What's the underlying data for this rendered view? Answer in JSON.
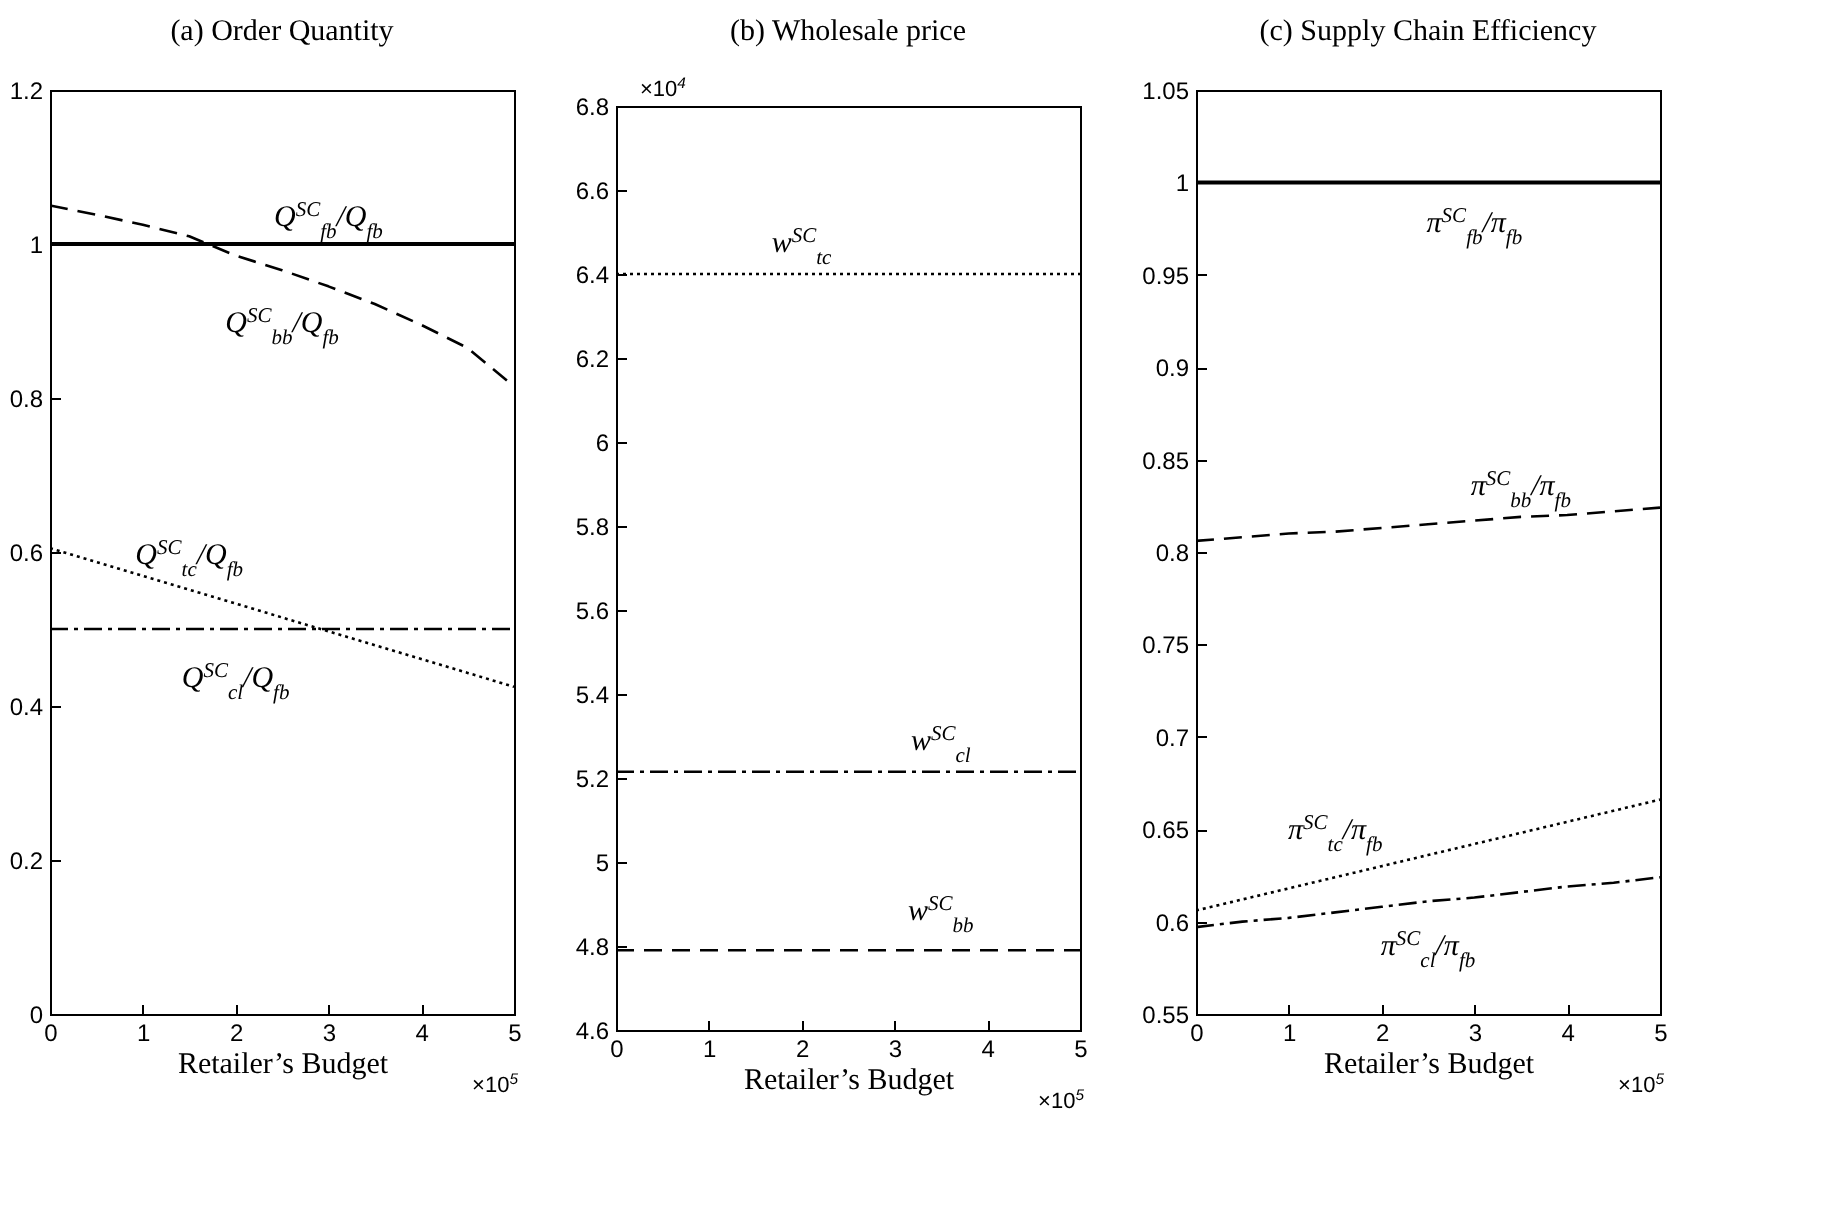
{
  "chart_data": [
    {
      "type": "line",
      "title": "(a) Order Quantity",
      "xlabel": "Retailer’s Budget",
      "x": [
        0,
        0.5,
        1,
        1.5,
        2,
        2.5,
        3,
        3.5,
        4,
        4.5,
        5
      ],
      "xlim": [
        0,
        5
      ],
      "xticks": [
        0,
        1,
        2,
        3,
        4,
        5
      ],
      "ylim": [
        0,
        1.2
      ],
      "yticks": [
        0,
        0.2,
        0.4,
        0.6,
        0.8,
        1,
        1.2
      ],
      "grid": false,
      "marker": "none",
      "annotations": [
        "×10$^{5}$"
      ],
      "series": [
        {
          "name": "Q$^{SC}$$_{fb}$/Q$_{fb}$",
          "color": "#000000",
          "line_style": "solid",
          "values": [
            1,
            1,
            1,
            1,
            1,
            1,
            1,
            1,
            1,
            1,
            1
          ]
        },
        {
          "name": "Q$^{SC}$$_{bb}$/Q$_{fb}$",
          "color": "#000000",
          "line_style": "dashed",
          "values": [
            1.05,
            1.038,
            1.025,
            1.01,
            0.985,
            0.966,
            0.945,
            0.922,
            0.895,
            0.865,
            0.815
          ]
        },
        {
          "name": "Q$^{SC}$$_{tc}$/Q$_{fb}$",
          "color": "#000000",
          "line_style": "dotted",
          "values": [
            0.605,
            0.587,
            0.569,
            0.551,
            0.533,
            0.515,
            0.497,
            0.479,
            0.461,
            0.443,
            0.425
          ]
        },
        {
          "name": "Q$^{SC}$$_{cl}$/Q$_{fb}$",
          "color": "#000000",
          "line_style": "dashdot",
          "values": [
            0.5,
            0.5,
            0.5,
            0.5,
            0.5,
            0.5,
            0.5,
            0.5,
            0.5,
            0.5,
            0.5
          ]
        }
      ]
    },
    {
      "type": "line",
      "title": "(b) Wholesale price",
      "xlabel": "Retailer’s Budget",
      "x": [
        0,
        0.5,
        1,
        1.5,
        2,
        2.5,
        3,
        3.5,
        4,
        4.5,
        5
      ],
      "xlim": [
        0,
        5
      ],
      "xticks": [
        0,
        1,
        2,
        3,
        4,
        5
      ],
      "ylim": [
        4.6,
        6.8
      ],
      "yticks": [
        4.6,
        4.8,
        5,
        5.2,
        5.4,
        5.6,
        5.8,
        6,
        6.2,
        6.4,
        6.6,
        6.8
      ],
      "grid": false,
      "marker": "none",
      "annotations": [
        "×10$^{4}$",
        "×10$^{5}$"
      ],
      "series": [
        {
          "name": "w$^{SC}$$_{tc}$",
          "color": "#000000",
          "line_style": "dotted",
          "values": [
            6.4,
            6.4,
            6.4,
            6.4,
            6.4,
            6.4,
            6.4,
            6.4,
            6.4,
            6.4,
            6.4
          ]
        },
        {
          "name": "w$^{SC}$$_{cl}$",
          "color": "#000000",
          "line_style": "dashdot",
          "values": [
            5.215,
            5.215,
            5.215,
            5.215,
            5.215,
            5.215,
            5.215,
            5.215,
            5.215,
            5.215,
            5.215
          ]
        },
        {
          "name": "w$^{SC}$$_{bb}$",
          "color": "#000000",
          "line_style": "dashed",
          "values": [
            4.79,
            4.79,
            4.79,
            4.79,
            4.79,
            4.79,
            4.79,
            4.79,
            4.79,
            4.79,
            4.79
          ]
        }
      ]
    },
    {
      "type": "line",
      "title": "(c) Supply Chain Efficiency",
      "xlabel": "Retailer’s Budget",
      "x": [
        0,
        0.5,
        1,
        1.5,
        2,
        2.5,
        3,
        3.5,
        4,
        4.5,
        5
      ],
      "xlim": [
        0,
        5
      ],
      "xticks": [
        0,
        1,
        2,
        3,
        4,
        5
      ],
      "ylim": [
        0.55,
        1.05
      ],
      "yticks": [
        0.55,
        0.6,
        0.65,
        0.7,
        0.75,
        0.8,
        0.85,
        0.9,
        0.95,
        1,
        1.05
      ],
      "grid": false,
      "marker": "none",
      "annotations": [
        "×10$^{5}$"
      ],
      "series": [
        {
          "name": "π$^{SC}$$_{fb}$/π$_{fb}$",
          "color": "#000000",
          "line_style": "solid",
          "values": [
            1,
            1,
            1,
            1,
            1,
            1,
            1,
            1,
            1,
            1,
            1
          ]
        },
        {
          "name": "π$^{SC}$$_{bb}$/π$_{fb}$",
          "color": "#000000",
          "line_style": "dashed",
          "values": [
            0.806,
            0.808,
            0.81,
            0.811,
            0.813,
            0.815,
            0.817,
            0.819,
            0.82,
            0.822,
            0.824
          ]
        },
        {
          "name": "π$^{SC}$$_{tc}$/π$_{fb}$",
          "color": "#000000",
          "line_style": "dotted",
          "values": [
            0.606,
            0.612,
            0.618,
            0.624,
            0.63,
            0.636,
            0.642,
            0.648,
            0.654,
            0.66,
            0.666
          ]
        },
        {
          "name": "π$^{SC}$$_{cl}$/π$_{fb}$",
          "color": "#000000",
          "line_style": "dashdot",
          "values": [
            0.597,
            0.6,
            0.602,
            0.605,
            0.608,
            0.611,
            0.613,
            0.616,
            0.619,
            0.621,
            0.624
          ]
        }
      ]
    }
  ]
}
